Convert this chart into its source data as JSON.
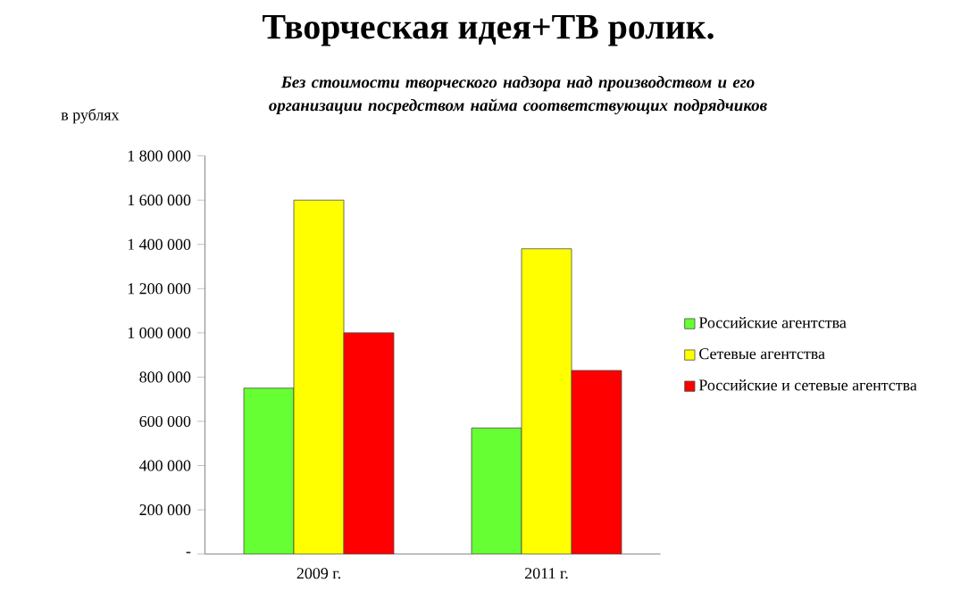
{
  "chart_data": {
    "type": "bar",
    "title": "Творческая идея+ТВ ролик.",
    "subtitle": "Без  стоимости творческого надзора над производством и его организации посредством найма соответствующих  подрядчиков",
    "ylabel": "в рублях",
    "categories": [
      "2009  г.",
      "2011  г."
    ],
    "series": [
      {
        "name": "Российские агентства",
        "color": "#66ff33",
        "values": [
          750000,
          570000
        ]
      },
      {
        "name": "Сетевые агентства",
        "color": "#ffff00",
        "values": [
          1600000,
          1380000
        ]
      },
      {
        "name": "Российские и сетевые агентства",
        "color": "#ff0000",
        "values": [
          1000000,
          830000
        ]
      }
    ],
    "ylim": [
      0,
      1800000
    ],
    "yticks": [
      {
        "value": 0,
        "label": "-"
      },
      {
        "value": 200000,
        "label": "200 000"
      },
      {
        "value": 400000,
        "label": "400 000"
      },
      {
        "value": 600000,
        "label": "600 000"
      },
      {
        "value": 800000,
        "label": "800 000"
      },
      {
        "value": 1000000,
        "label": "1 000 000"
      },
      {
        "value": 1200000,
        "label": "1 200 000"
      },
      {
        "value": 1400000,
        "label": "1 400 000"
      },
      {
        "value": 1600000,
        "label": "1 600 000"
      },
      {
        "value": 1800000,
        "label": "1 800 000"
      }
    ],
    "legend": "right",
    "grid": false
  }
}
